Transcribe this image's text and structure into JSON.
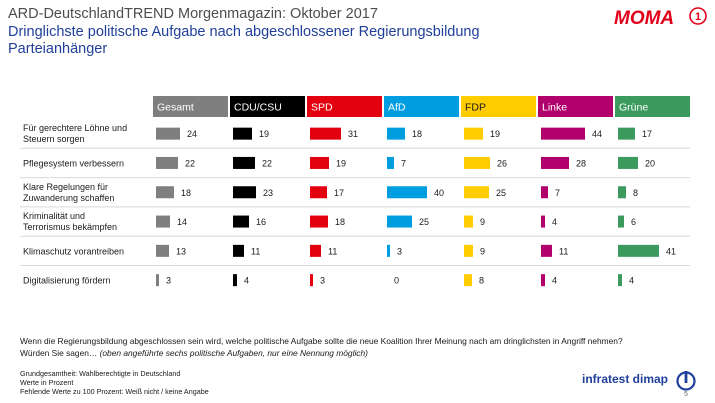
{
  "header": {
    "title": "ARD-DeutschlandTREND Morgenmagazin: Oktober 2017",
    "subtitle_line1": "Dringlichste politische Aufgabe nach abgeschlossener Regierungsbildung",
    "subtitle_line2": "Parteianhänger"
  },
  "logo": {
    "text": "MOMA",
    "badge": "1",
    "color": "#e2001a"
  },
  "chart_data": {
    "type": "bar",
    "layout": "small-multiples",
    "series": [
      {
        "name": "Gesamt",
        "color": "#7f7f7f",
        "text_color": "#ffffff",
        "values": [
          24,
          22,
          18,
          14,
          13,
          3
        ]
      },
      {
        "name": "CDU/CSU",
        "color": "#000000",
        "text_color": "#ffffff",
        "values": [
          19,
          22,
          23,
          16,
          11,
          4
        ]
      },
      {
        "name": "SPD",
        "color": "#e3000f",
        "text_color": "#ffffff",
        "values": [
          31,
          19,
          17,
          18,
          11,
          3
        ]
      },
      {
        "name": "AfD",
        "color": "#009ee0",
        "text_color": "#ffffff",
        "values": [
          18,
          7,
          40,
          25,
          3,
          0
        ]
      },
      {
        "name": "FDP",
        "color": "#ffcc00",
        "text_color": "#1a1a1a",
        "values": [
          19,
          26,
          25,
          9,
          9,
          8
        ]
      },
      {
        "name": "Linke",
        "color": "#b1006c",
        "text_color": "#ffffff",
        "values": [
          44,
          28,
          7,
          4,
          11,
          4
        ]
      },
      {
        "name": "Grüne",
        "color": "#3c9a5f",
        "text_color": "#ffffff",
        "values": [
          17,
          20,
          8,
          6,
          41,
          4
        ]
      }
    ],
    "categories": [
      [
        "Für gerechtere Löhne und",
        "Steuern sorgen"
      ],
      [
        "Pflegesystem verbessern"
      ],
      [
        "Klare Regelungen für",
        "Zuwanderung schaffen"
      ],
      [
        "Kriminalität und",
        "Terrorismus bekämpfen"
      ],
      [
        "Klimaschutz vorantreiben"
      ],
      [
        "Digitalisierung fördern"
      ]
    ],
    "unit": "Prozent",
    "ylim": [
      0,
      45
    ]
  },
  "question": {
    "line1": "Wenn die Regierungsbildung abgeschlossen sein wird, welche politische Aufgabe sollte die neue Koalition Ihrer Meinung nach am dringlichsten in Angriff nehmen?",
    "line2_prefix": "Würden Sie sagen… ",
    "line2_italic": "(oben angeführte sechs politische Aufgaben, nur eine Nennung möglich)"
  },
  "footnotes": [
    "Grundgesamtheit:  Wahlberechtigte in Deutschland",
    "Werte in Prozent",
    "Fehlende Werte zu 100 Prozent: Weiß nicht / keine Angabe"
  ],
  "brand": {
    "name": "infratest dimap",
    "page": "5"
  }
}
